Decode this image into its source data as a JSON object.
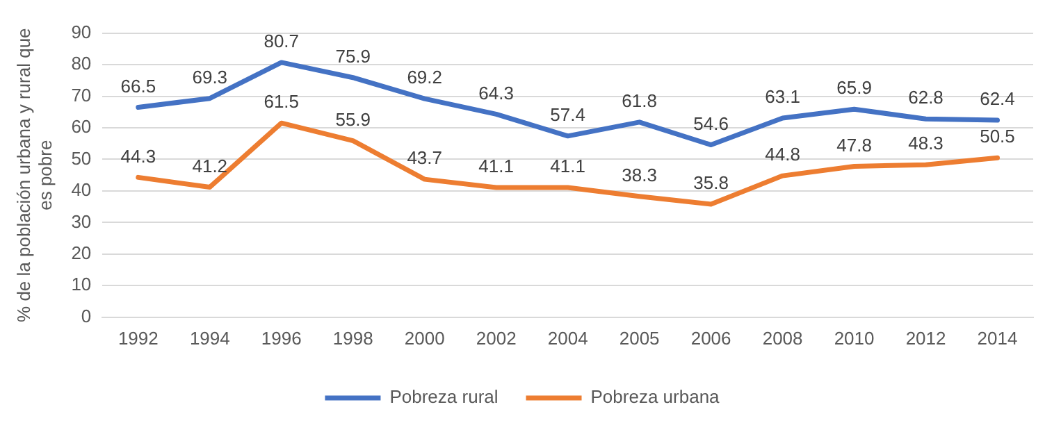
{
  "chart_data": {
    "type": "line",
    "ylabel": "% de la población urbana y rural que es pobre",
    "categories": [
      "1992",
      "1994",
      "1996",
      "1998",
      "2000",
      "2002",
      "2004",
      "2005",
      "2006",
      "2008",
      "2010",
      "2012",
      "2014"
    ],
    "series": [
      {
        "name": "Pobreza rural",
        "color": "#4472c4",
        "values": [
          66.5,
          69.3,
          80.7,
          75.9,
          69.2,
          64.3,
          57.4,
          61.8,
          54.6,
          63.1,
          65.9,
          62.8,
          62.4
        ]
      },
      {
        "name": "Pobreza urbana",
        "color": "#ed7d31",
        "values": [
          44.3,
          41.2,
          61.5,
          55.9,
          43.7,
          41.1,
          41.1,
          38.3,
          35.8,
          44.8,
          47.8,
          48.3,
          50.5
        ]
      }
    ],
    "ylim": [
      0,
      90
    ],
    "yticks": [
      0,
      10,
      20,
      30,
      40,
      50,
      60,
      70,
      80,
      90
    ],
    "grid": "y",
    "legend": "bottom",
    "data_labels": true,
    "marker": "none",
    "line_style": "solid"
  }
}
